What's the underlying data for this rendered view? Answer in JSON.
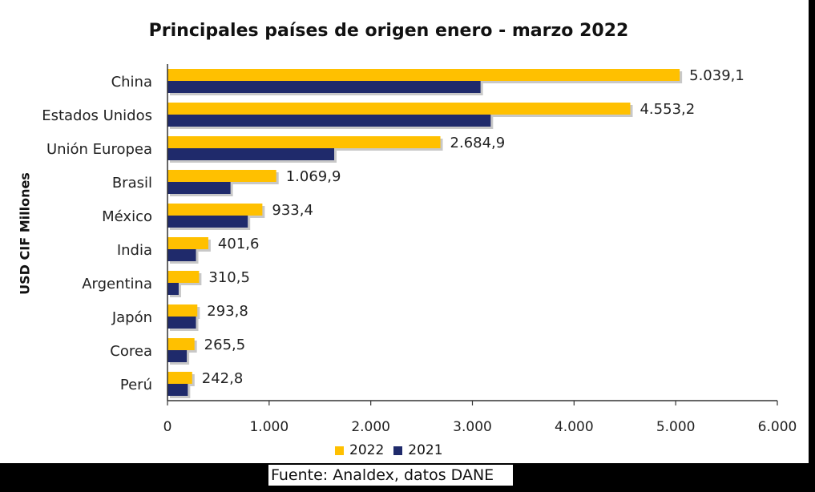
{
  "chart_data": {
    "type": "bar",
    "orientation": "horizontal",
    "title": "Principales países de origen enero - marzo 2022",
    "ylabel": "USD CIF Millones",
    "xlabel": "",
    "xlim": [
      0,
      6000
    ],
    "x_ticks": [
      "0",
      "1.000",
      "2.000",
      "3.000",
      "4.000",
      "5.000",
      "6.000"
    ],
    "x_tick_values": [
      0,
      1000,
      2000,
      3000,
      4000,
      5000,
      6000
    ],
    "categories": [
      "China",
      "Estados Unidos",
      "Unión Europea",
      "Brasil",
      "México",
      "India",
      "Argentina",
      "Japón",
      "Corea",
      "Perú"
    ],
    "series": [
      {
        "name": "2022",
        "color": "#FFC000",
        "values": [
          5039.1,
          4553.2,
          2684.9,
          1069.9,
          933.4,
          401.6,
          310.5,
          293.8,
          265.5,
          242.8
        ],
        "labels": [
          "5.039,1",
          "4.553,2",
          "2.684,9",
          "1.069,9",
          "933,4",
          "401,6",
          "310,5",
          "293,8",
          "265,5",
          "242,8"
        ]
      },
      {
        "name": "2021",
        "color": "#1F2A6B",
        "values": [
          3080,
          3180,
          1640,
          620,
          790,
          280,
          110,
          280,
          190,
          200
        ]
      }
    ],
    "legend": "bottom",
    "grid": false
  },
  "footer": {
    "source": "Fuente: Analdex, datos DANE"
  }
}
